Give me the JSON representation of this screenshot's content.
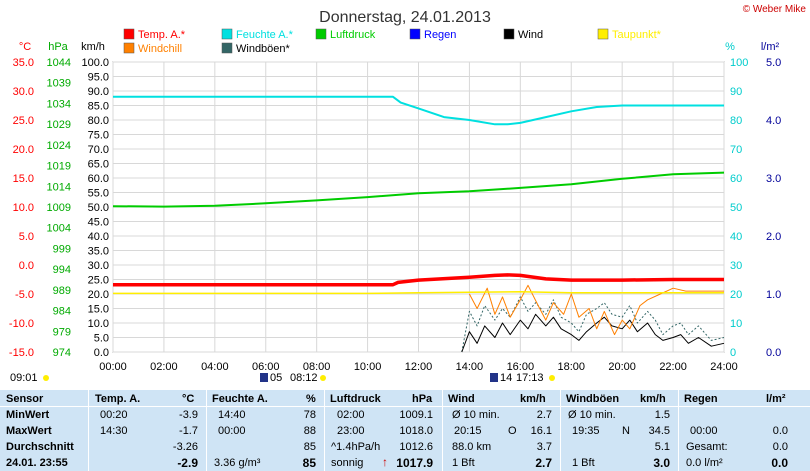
{
  "header": {
    "title": "Donnerstag, 24.01.2013",
    "copyright": "© Weber Mike"
  },
  "chart_data": {
    "type": "line",
    "title": "Donnerstag, 24.01.2013",
    "x_labels": [
      "00:00",
      "02:00",
      "04:00",
      "06:00",
      "08:00",
      "10:00",
      "12:00",
      "14:00",
      "16:00",
      "18:00",
      "20:00",
      "22:00",
      "24:00"
    ],
    "axes": {
      "temp_c": {
        "label": "°C",
        "min": -15,
        "max": 35,
        "ticks": [
          "35.0",
          "30.0",
          "25.0",
          "20.0",
          "15.0",
          "10.0",
          "5.0",
          "0.0",
          "-5.0",
          "-10.0",
          "-15.0"
        ]
      },
      "pressure_hpa": {
        "label": "hPa",
        "min": 974,
        "max": 1044,
        "ticks": [
          "1044",
          "1039",
          "1034",
          "1029",
          "1024",
          "1019",
          "1014",
          "1009",
          "1004",
          "999",
          "994",
          "989",
          "984",
          "979",
          "974"
        ]
      },
      "wind_kmh": {
        "label": "km/h",
        "min": 0,
        "max": 100,
        "ticks": [
          "100.0",
          "95.0",
          "90.0",
          "85.0",
          "80.0",
          "75.0",
          "70.0",
          "65.0",
          "60.0",
          "55.0",
          "50.0",
          "45.0",
          "40.0",
          "35.0",
          "30.0",
          "25.0",
          "20.0",
          "15.0",
          "10.0",
          "5.0",
          "0.0"
        ]
      },
      "humidity_pct": {
        "label": "%",
        "min": 0,
        "max": 100,
        "ticks": [
          "100",
          "90",
          "80",
          "70",
          "60",
          "50",
          "40",
          "30",
          "20",
          "10",
          "0"
        ]
      },
      "rain_lm2": {
        "label": "l/m²",
        "min": 0,
        "max": 5,
        "ticks": [
          "5.0",
          "4.0",
          "3.0",
          "2.0",
          "1.0",
          "0.0"
        ]
      }
    },
    "legend": [
      {
        "name": "Temp. A.*",
        "color": "#ff0000"
      },
      {
        "name": "Feuchte A.*",
        "color": "#00e0e0"
      },
      {
        "name": "Luftdruck",
        "color": "#00cc00"
      },
      {
        "name": "Regen",
        "color": "#0000ff"
      },
      {
        "name": "Wind",
        "color": "#000000"
      },
      {
        "name": "Taupunkt*",
        "color": "#ffee00"
      },
      {
        "name": "Windchill",
        "color": "#ff8000"
      },
      {
        "name": "Windböen*",
        "color": "#336666"
      }
    ],
    "series": {
      "temperature": {
        "color": "#ff0000",
        "x": [
          0,
          11,
          11.2,
          12,
          14,
          15,
          15.5,
          16,
          17,
          18,
          20,
          22,
          24
        ],
        "y": [
          -3.4,
          -3.4,
          -3.0,
          -2.6,
          -2.1,
          -1.8,
          -1.7,
          -1.8,
          -2.4,
          -2.6,
          -2.6,
          -2.5,
          -2.5
        ]
      },
      "humidity": {
        "color": "#00e0e0",
        "x": [
          0,
          11,
          11.3,
          12,
          13,
          14,
          15,
          15.5,
          16,
          17,
          18,
          19,
          20,
          21,
          22,
          23,
          24
        ],
        "y": [
          88,
          88,
          86,
          84,
          81,
          80,
          78.5,
          78.5,
          79,
          81,
          83,
          84.5,
          85,
          85,
          85,
          85,
          85
        ]
      },
      "pressure": {
        "color": "#00cc00",
        "x": [
          0,
          2,
          4,
          6,
          8,
          10,
          12,
          14,
          16,
          18,
          20,
          22,
          24
        ],
        "y": [
          1009.2,
          1009.1,
          1009.3,
          1009.9,
          1010.6,
          1011.4,
          1012.3,
          1012.8,
          1013.6,
          1014.5,
          1015.8,
          1016.9,
          1017.3
        ]
      },
      "dewpoint": {
        "color": "#ffee00",
        "x": [
          0,
          2,
          4,
          6,
          8,
          10,
          12,
          14,
          16,
          18,
          20,
          22,
          24
        ],
        "y": [
          -4.9,
          -4.9,
          -4.9,
          -4.9,
          -4.9,
          -4.9,
          -4.8,
          -4.7,
          -4.6,
          -4.8,
          -4.8,
          -4.8,
          -4.8
        ]
      },
      "windchill": {
        "color": "#ff8000",
        "x": [
          14,
          14.3,
          14.7,
          15,
          15.3,
          15.6,
          16,
          16.3,
          16.7,
          17,
          17.3,
          17.7,
          18,
          18.3,
          18.7,
          19,
          19.3,
          19.7,
          20,
          20.3,
          20.7,
          21,
          21.5,
          22,
          22.5,
          23,
          24
        ],
        "y": [
          -5.0,
          -7.5,
          -4.0,
          -8.5,
          -5.5,
          -9.0,
          -6.0,
          -3.5,
          -7.0,
          -9.5,
          -6.5,
          -8.5,
          -5.0,
          -9.0,
          -7.5,
          -11.0,
          -8.0,
          -12.0,
          -9.5,
          -11.0,
          -7.0,
          -6.0,
          -5.0,
          -4.0,
          -4.5,
          -4.5,
          -4.5
        ]
      },
      "wind": {
        "color": "#000000",
        "x": [
          13.7,
          14,
          14.3,
          14.6,
          15,
          15.3,
          15.6,
          16,
          16.3,
          16.6,
          17,
          17.3,
          17.6,
          18,
          18.3,
          18.6,
          19,
          19.3,
          19.6,
          20,
          20.3,
          20.6,
          21,
          21.3,
          21.6,
          22,
          22.3,
          22.6,
          23,
          23.5,
          24
        ],
        "y": [
          0,
          7,
          3,
          9,
          5,
          10,
          6,
          11,
          8,
          13,
          9,
          12,
          8,
          6,
          4,
          7,
          10,
          12,
          9,
          8,
          11,
          7,
          10,
          6,
          4,
          5,
          6,
          3,
          5,
          2,
          3
        ]
      },
      "gusts": {
        "color": "#336666",
        "x": [
          13.7,
          14,
          14.3,
          14.6,
          15,
          15.3,
          15.6,
          16,
          16.3,
          16.6,
          17,
          17.3,
          17.6,
          18,
          18.3,
          18.6,
          19,
          19.3,
          19.6,
          20,
          20.3,
          20.6,
          21,
          21.3,
          21.6,
          22,
          22.3,
          22.6,
          23,
          23.5,
          24
        ],
        "y": [
          0,
          14,
          9,
          16,
          11,
          15,
          12,
          19,
          14,
          17,
          13,
          18,
          12,
          10,
          7,
          13,
          15,
          17,
          13,
          12,
          16,
          10,
          14,
          11,
          6,
          9,
          10,
          6,
          9,
          4,
          5
        ]
      }
    }
  },
  "events": {
    "left_time": "09:01",
    "sunrise_time": "08:12",
    "sunrise_prefix": "05",
    "sunset_time": "17:13",
    "sunset_prefix": "14"
  },
  "table": {
    "row_labels": [
      "Sensor",
      "MinWert",
      "MaxWert",
      "Durchschnitt",
      "24.01. 23:55"
    ],
    "temp": {
      "header": "Temp. A.",
      "unit": "°C",
      "min_time": "00:20",
      "min": "-3.9",
      "max_time": "14:30",
      "max": "-1.7",
      "avg": "-3.26",
      "current": "-2.9"
    },
    "humidity": {
      "header": "Feuchte A.",
      "unit": "%",
      "min_time": "14:40",
      "min": "78",
      "max_time": "00:00",
      "max": "88",
      "avg": "85",
      "current_extra": "3.36 g/m³",
      "current": "85"
    },
    "pressure": {
      "header": "Luftdruck",
      "unit": "hPa",
      "min_time": "02:00",
      "min": "1009.1",
      "max_time": "23:00",
      "max": "1018.0",
      "avg_label": "^1.4hPa/h",
      "avg": "1012.6",
      "current_label": "sonnig",
      "current": "1017.9"
    },
    "wind": {
      "header": "Wind",
      "unit": "km/h",
      "row1_label": "Ø 10 min.",
      "row1": "2.7",
      "row2_label": "20:15",
      "row2_dir": "O",
      "row2": "16.1",
      "row3_label": "88.0 km",
      "row3": "3.7",
      "current_label": "1 Bft",
      "current": "2.7"
    },
    "gusts": {
      "header": "Windböen",
      "unit": "km/h",
      "row1_label": "Ø 10 min.",
      "row1": "1.5",
      "row2_label": "19:35",
      "row2_dir": "N",
      "row2": "34.5",
      "row3": "5.1",
      "current_label": "1 Bft",
      "current": "3.0"
    },
    "rain": {
      "header": "Regen",
      "unit": "l/m²",
      "row2_label": "00:00",
      "row2": "0.0",
      "row3_label": "Gesamt:",
      "row3": "0.0",
      "current_label": "0.0 l/m²",
      "current": "0.0"
    }
  }
}
